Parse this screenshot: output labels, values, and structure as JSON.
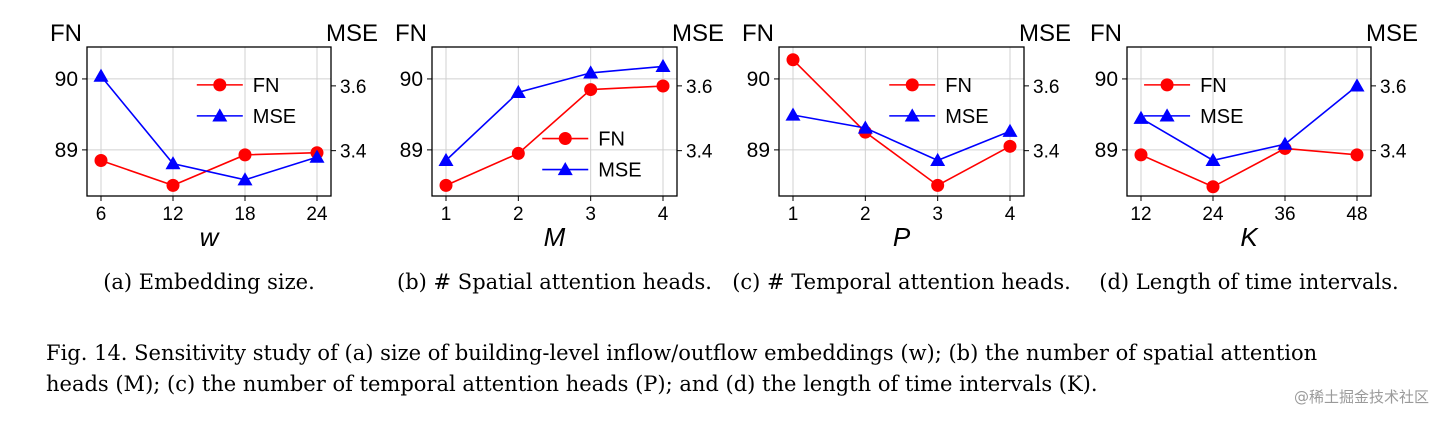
{
  "chart_data": [
    {
      "type": "line",
      "caption": "(a) Embedding size.",
      "xlabel": "w",
      "ylabel_left": "FN",
      "ylabel_right": "MSE",
      "x": [
        6,
        12,
        18,
        24
      ],
      "x_ticks": [
        "6",
        "12",
        "18",
        "24"
      ],
      "ylim_left": [
        88.35,
        90.45
      ],
      "ylim_right": [
        3.26,
        3.72
      ],
      "y_ticks_left": [
        "89",
        "90"
      ],
      "y_ticks_right": [
        "3.4",
        "3.6"
      ],
      "grid": true,
      "legend_position": "top-right",
      "series": [
        {
          "name": "FN",
          "axis": "left",
          "marker": "circle",
          "color": "#ff0000",
          "values": [
            88.85,
            88.5,
            88.93,
            88.96
          ]
        },
        {
          "name": "MSE",
          "axis": "right",
          "marker": "triangle",
          "color": "#0000ff",
          "values": [
            3.63,
            3.36,
            3.31,
            3.38
          ]
        }
      ]
    },
    {
      "type": "line",
      "caption": "(b) # Spatial attention heads.",
      "xlabel": "M",
      "ylabel_left": "FN",
      "ylabel_right": "MSE",
      "x": [
        1,
        2,
        3,
        4
      ],
      "x_ticks": [
        "1",
        "2",
        "3",
        "4"
      ],
      "ylim_left": [
        88.35,
        90.45
      ],
      "ylim_right": [
        3.26,
        3.72
      ],
      "y_ticks_left": [
        "89",
        "90"
      ],
      "y_ticks_right": [
        "3.4",
        "3.6"
      ],
      "grid": true,
      "legend_position": "center-right",
      "series": [
        {
          "name": "FN",
          "axis": "left",
          "marker": "circle",
          "color": "#ff0000",
          "values": [
            88.5,
            88.95,
            89.85,
            89.9
          ]
        },
        {
          "name": "MSE",
          "axis": "right",
          "marker": "triangle",
          "color": "#0000ff",
          "values": [
            3.37,
            3.58,
            3.64,
            3.66
          ]
        }
      ]
    },
    {
      "type": "line",
      "caption": "(c) # Temporal attention heads.",
      "xlabel": "P",
      "ylabel_left": "FN",
      "ylabel_right": "MSE",
      "x": [
        1,
        2,
        3,
        4
      ],
      "x_ticks": [
        "1",
        "2",
        "3",
        "4"
      ],
      "ylim_left": [
        88.35,
        90.45
      ],
      "ylim_right": [
        3.26,
        3.72
      ],
      "y_ticks_left": [
        "89",
        "90"
      ],
      "y_ticks_right": [
        "3.4",
        "3.6"
      ],
      "grid": true,
      "legend_position": "top-right",
      "series": [
        {
          "name": "FN",
          "axis": "left",
          "marker": "circle",
          "color": "#ff0000",
          "values": [
            90.27,
            89.25,
            88.5,
            89.05
          ]
        },
        {
          "name": "MSE",
          "axis": "right",
          "marker": "triangle",
          "color": "#0000ff",
          "values": [
            3.51,
            3.47,
            3.37,
            3.46
          ]
        }
      ]
    },
    {
      "type": "line",
      "caption": "(d) Length of time intervals.",
      "xlabel": "K",
      "ylabel_left": "FN",
      "ylabel_right": "MSE",
      "x": [
        12,
        24,
        36,
        48
      ],
      "x_ticks": [
        "12",
        "24",
        "36",
        "48"
      ],
      "ylim_left": [
        88.35,
        90.45
      ],
      "ylim_right": [
        3.26,
        3.72
      ],
      "y_ticks_left": [
        "89",
        "90"
      ],
      "y_ticks_right": [
        "3.4",
        "3.6"
      ],
      "grid": true,
      "legend_position": "top-left",
      "series": [
        {
          "name": "FN",
          "axis": "left",
          "marker": "circle",
          "color": "#ff0000",
          "values": [
            88.93,
            88.48,
            89.02,
            88.93
          ]
        },
        {
          "name": "MSE",
          "axis": "right",
          "marker": "triangle",
          "color": "#0000ff",
          "values": [
            3.5,
            3.37,
            3.42,
            3.6
          ]
        }
      ]
    }
  ],
  "figure_caption": {
    "line1": "Fig. 14.  Sensitivity study of (a) size of building-level inflow/outflow embeddings (w); (b) the number of spatial attention",
    "line2": "heads (M); (c) the number of temporal attention heads (P); and (d) the length of time intervals (K)."
  },
  "watermark": "@稀土掘金技术社区"
}
